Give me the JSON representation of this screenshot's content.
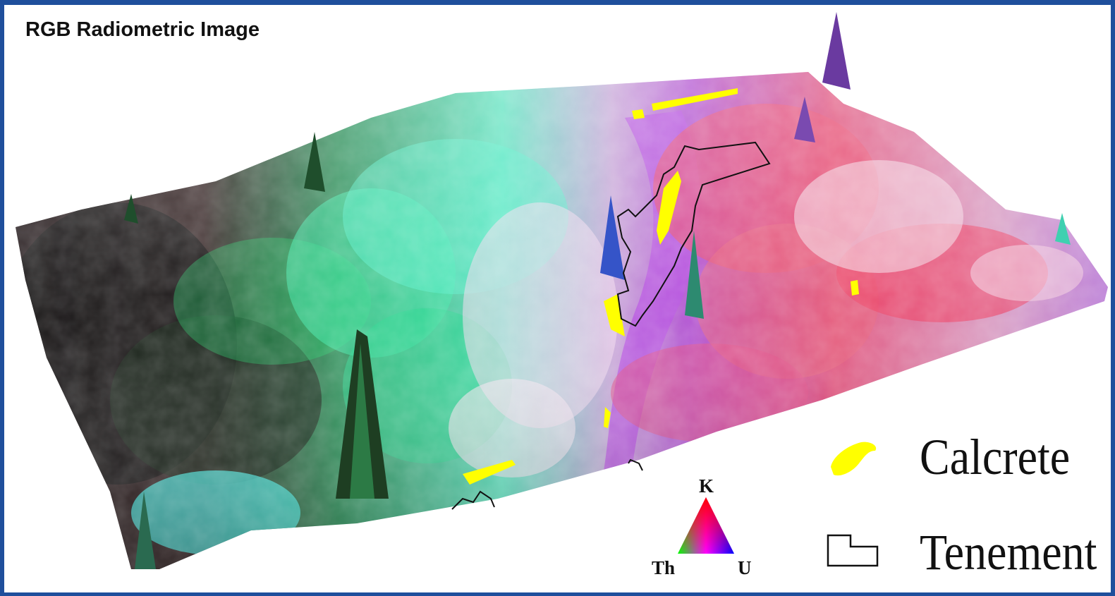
{
  "title": "RGB Radiometric Image",
  "legend": {
    "calcrete_label": "Calcrete",
    "tenement_label": "Tenement",
    "calcrete_color": "#ffff00",
    "tenement_color": "#111111"
  },
  "ternary": {
    "top_label": "K",
    "left_label": "Th",
    "right_label": "U",
    "top_color": "#ff0000",
    "left_color": "#00ff00",
    "right_color": "#0000ff"
  }
}
